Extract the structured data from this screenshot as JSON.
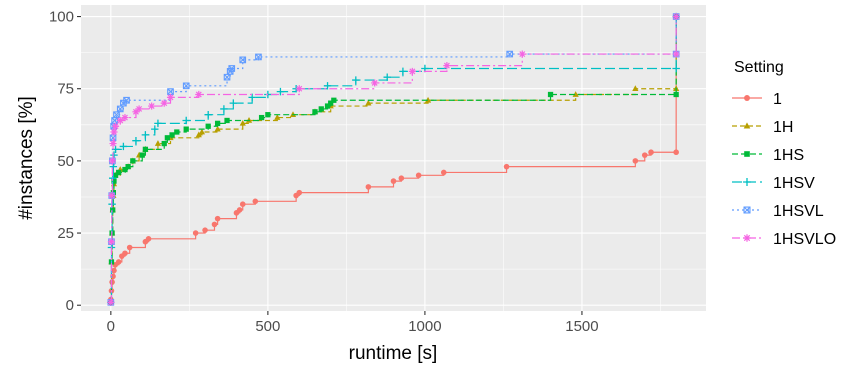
{
  "chart_data": {
    "type": "line",
    "step": true,
    "xlabel": "runtime [s]",
    "ylabel": "#instances [%]",
    "xlim": [
      -95,
      1895
    ],
    "ylim": [
      -2,
      104
    ],
    "xticks": [
      0,
      500,
      1000,
      1500
    ],
    "yticks": [
      0,
      25,
      50,
      75,
      100
    ],
    "grid": true,
    "legend": {
      "title": "Setting",
      "position": "right"
    },
    "series": [
      {
        "name": "1",
        "color": "#F8766D",
        "dash": "",
        "marker": "circle",
        "points": [
          [
            0,
            2
          ],
          [
            2,
            5
          ],
          [
            4,
            8
          ],
          [
            7,
            10
          ],
          [
            10,
            12
          ],
          [
            14,
            14
          ],
          [
            25,
            15
          ],
          [
            35,
            17
          ],
          [
            45,
            18
          ],
          [
            60,
            20
          ],
          [
            110,
            22
          ],
          [
            120,
            23
          ],
          [
            270,
            25
          ],
          [
            300,
            26
          ],
          [
            330,
            28
          ],
          [
            340,
            30
          ],
          [
            400,
            32
          ],
          [
            410,
            33
          ],
          [
            420,
            35
          ],
          [
            460,
            36
          ],
          [
            590,
            38
          ],
          [
            600,
            39
          ],
          [
            820,
            41
          ],
          [
            900,
            43
          ],
          [
            925,
            44
          ],
          [
            980,
            45
          ],
          [
            1060,
            46
          ],
          [
            1260,
            48
          ],
          [
            1670,
            50
          ],
          [
            1700,
            52
          ],
          [
            1720,
            53
          ],
          [
            1800,
            53
          ],
          [
            1800,
            100
          ]
        ]
      },
      {
        "name": "1H",
        "color": "#B79F00",
        "dash": "5,3",
        "marker": "triangle",
        "points": [
          [
            0,
            1
          ],
          [
            2,
            15
          ],
          [
            4,
            25
          ],
          [
            6,
            33
          ],
          [
            8,
            38
          ],
          [
            10,
            42
          ],
          [
            14,
            45
          ],
          [
            30,
            47
          ],
          [
            55,
            48
          ],
          [
            70,
            50
          ],
          [
            90,
            52
          ],
          [
            110,
            54
          ],
          [
            150,
            56
          ],
          [
            190,
            58
          ],
          [
            280,
            59
          ],
          [
            290,
            60
          ],
          [
            340,
            61
          ],
          [
            420,
            63
          ],
          [
            440,
            64
          ],
          [
            530,
            65
          ],
          [
            580,
            66
          ],
          [
            650,
            67
          ],
          [
            700,
            69
          ],
          [
            820,
            70
          ],
          [
            1010,
            71
          ],
          [
            1480,
            73
          ],
          [
            1670,
            75
          ],
          [
            1800,
            75
          ],
          [
            1800,
            100
          ]
        ]
      },
      {
        "name": "1HS",
        "color": "#00BA38",
        "dash": "6,3",
        "marker": "square",
        "points": [
          [
            0,
            1
          ],
          [
            2,
            15
          ],
          [
            4,
            25
          ],
          [
            6,
            33
          ],
          [
            8,
            39
          ],
          [
            10,
            43
          ],
          [
            15,
            45
          ],
          [
            25,
            46
          ],
          [
            45,
            47
          ],
          [
            55,
            48
          ],
          [
            70,
            50
          ],
          [
            100,
            52
          ],
          [
            110,
            54
          ],
          [
            170,
            56
          ],
          [
            180,
            58
          ],
          [
            195,
            59
          ],
          [
            210,
            60
          ],
          [
            240,
            61
          ],
          [
            310,
            62
          ],
          [
            340,
            63
          ],
          [
            370,
            64
          ],
          [
            480,
            65
          ],
          [
            500,
            66
          ],
          [
            650,
            67
          ],
          [
            670,
            68
          ],
          [
            690,
            69
          ],
          [
            700,
            70
          ],
          [
            710,
            71
          ],
          [
            1400,
            73
          ],
          [
            1800,
            73
          ],
          [
            1800,
            100
          ]
        ]
      },
      {
        "name": "1HSV",
        "color": "#00BFC4",
        "dash": "10,4",
        "marker": "plus",
        "points": [
          [
            0,
            1
          ],
          [
            2,
            20
          ],
          [
            4,
            35
          ],
          [
            6,
            44
          ],
          [
            8,
            48
          ],
          [
            10,
            52
          ],
          [
            15,
            54
          ],
          [
            40,
            55
          ],
          [
            80,
            57
          ],
          [
            110,
            59
          ],
          [
            140,
            61
          ],
          [
            150,
            63
          ],
          [
            240,
            64
          ],
          [
            310,
            66
          ],
          [
            360,
            68
          ],
          [
            390,
            70
          ],
          [
            450,
            72
          ],
          [
            500,
            73
          ],
          [
            540,
            74
          ],
          [
            590,
            75
          ],
          [
            690,
            76
          ],
          [
            780,
            78
          ],
          [
            880,
            79
          ],
          [
            930,
            81
          ],
          [
            1000,
            82
          ],
          [
            1800,
            82
          ],
          [
            1800,
            100
          ]
        ]
      },
      {
        "name": "1HSVL",
        "color": "#619CFF",
        "dash": "2,3",
        "marker": "boxx",
        "points": [
          [
            0,
            1
          ],
          [
            2,
            22
          ],
          [
            3,
            38
          ],
          [
            5,
            50
          ],
          [
            7,
            58
          ],
          [
            9,
            62
          ],
          [
            12,
            64
          ],
          [
            18,
            66
          ],
          [
            30,
            68
          ],
          [
            40,
            70
          ],
          [
            50,
            71
          ],
          [
            190,
            74
          ],
          [
            240,
            76
          ],
          [
            370,
            79
          ],
          [
            380,
            81
          ],
          [
            385,
            82
          ],
          [
            420,
            85
          ],
          [
            470,
            86
          ],
          [
            1270,
            87
          ],
          [
            1800,
            87
          ],
          [
            1800,
            100
          ]
        ]
      },
      {
        "name": "1HSVLO",
        "color": "#F564E3",
        "dash": "8,3,2,3",
        "marker": "asterisk",
        "points": [
          [
            0,
            1
          ],
          [
            2,
            22
          ],
          [
            3,
            38
          ],
          [
            5,
            50
          ],
          [
            7,
            56
          ],
          [
            10,
            60
          ],
          [
            15,
            62
          ],
          [
            30,
            64
          ],
          [
            45,
            65
          ],
          [
            80,
            67
          ],
          [
            90,
            68
          ],
          [
            130,
            69
          ],
          [
            170,
            70
          ],
          [
            190,
            72
          ],
          [
            280,
            73
          ],
          [
            600,
            75
          ],
          [
            840,
            77
          ],
          [
            960,
            81
          ],
          [
            1070,
            83
          ],
          [
            1310,
            87
          ],
          [
            1800,
            87
          ],
          [
            1800,
            100
          ]
        ]
      }
    ]
  }
}
